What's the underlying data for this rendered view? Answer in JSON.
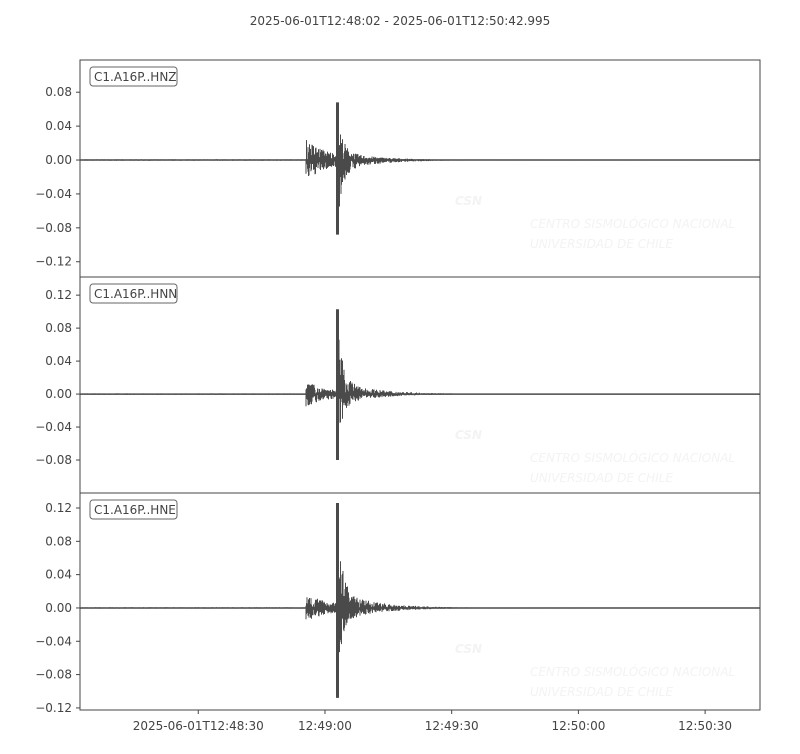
{
  "chart_data": {
    "type": "line",
    "title": "2025-06-01T12:48:02  -  2025-06-01T12:50:42.995",
    "start_time": "2025-06-01T12:48:02",
    "end_time": "2025-06-01T12:50:42.995",
    "x_ticks": [
      "2025-06-01T12:48:30",
      "12:49:00",
      "12:49:30",
      "12:50:00",
      "12:50:30"
    ],
    "x_tick_seconds_from_start": [
      28,
      58,
      88,
      118,
      148
    ],
    "line_color": "#4a4a4a",
    "grid": false,
    "watermark": {
      "logo": "CSN",
      "line1": "CENTRO SISMOLÓGICO NACIONAL",
      "line2": "UNIVERSIDAD DE CHILE"
    },
    "series": [
      {
        "name": "C1.A16P..HNZ",
        "ylim": [
          -0.138,
          0.118
        ],
        "y_ticks": [
          "0.08",
          "0.04",
          "0.00",
          "−0.04",
          "−0.08",
          "−0.12"
        ],
        "y_tick_values": [
          0.08,
          0.04,
          0,
          -0.04,
          -0.08,
          -0.12
        ],
        "p_arrival_s": 53.4,
        "s_arrival_s": 60.7,
        "peak_max": 0.068,
        "peak_min": -0.088,
        "p_amp": 0.04
      },
      {
        "name": "C1.A16P..HNN",
        "ylim": [
          -0.12,
          0.142
        ],
        "y_ticks": [
          "0.12",
          "0.08",
          "0.04",
          "0.00",
          "−0.04",
          "−0.08"
        ],
        "y_tick_values": [
          0.12,
          0.08,
          0.04,
          0,
          -0.04,
          -0.08
        ],
        "p_arrival_s": 53.4,
        "s_arrival_s": 60.7,
        "peak_max": 0.103,
        "peak_min": -0.08,
        "p_amp": 0.025
      },
      {
        "name": "C1.A16P..HNE",
        "ylim": [
          -0.1225,
          0.138
        ],
        "y_ticks": [
          "0.12",
          "0.08",
          "0.04",
          "0.00",
          "−0.04",
          "−0.08",
          "−0.12"
        ],
        "y_tick_values": [
          0.12,
          0.08,
          0.04,
          0,
          -0.04,
          -0.08,
          -0.12
        ],
        "p_arrival_s": 53.4,
        "s_arrival_s": 60.7,
        "peak_max": 0.126,
        "peak_min": -0.108,
        "p_amp": 0.028
      }
    ]
  }
}
